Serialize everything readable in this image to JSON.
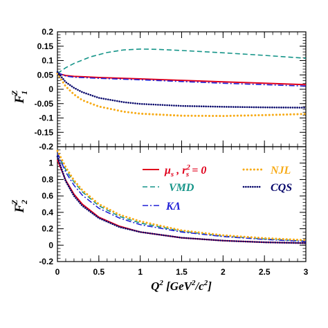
{
  "colors": {
    "mu_s": "#e0001c",
    "vmd": "#149488",
    "klambda": "#1f1fd6",
    "njl": "#f7ab18",
    "cqs": "#08086b"
  },
  "chart_data": {
    "type": "line",
    "xlabel": {
      "main": "Q",
      "rest": " [GeV",
      "rest2": "/c",
      "rest3": "]"
    },
    "x_ticks": [
      "0",
      "0.5",
      "1",
      "1.5",
      "2",
      "2.5",
      "3"
    ],
    "xlim": [
      0,
      3
    ],
    "panels": [
      {
        "ylabel": {
          "base": "F",
          "sup": "Z",
          "sub": "1"
        },
        "ylim": [
          -0.2,
          0.2
        ],
        "y_ticks": [
          "-0.2",
          "-0.15",
          "-0.1",
          "-0.05",
          "0",
          "0.05",
          "0.1",
          "0.15",
          "0.2"
        ],
        "series": [
          {
            "key": "mu_s",
            "x": [
              0,
              0.1,
              0.2,
              0.5,
              1,
              1.5,
              2,
              2.5,
              3
            ],
            "y": [
              0.055,
              0.048,
              0.045,
              0.041,
              0.036,
              0.031,
              0.026,
              0.021,
              0.016
            ]
          },
          {
            "key": "vmd",
            "x": [
              0,
              0.1,
              0.2,
              0.4,
              0.6,
              0.8,
              1,
              1.2,
              1.5,
              2,
              2.5,
              3
            ],
            "y": [
              0.055,
              0.075,
              0.09,
              0.113,
              0.128,
              0.137,
              0.14,
              0.139,
              0.135,
              0.127,
              0.118,
              0.108
            ]
          },
          {
            "key": "klambda",
            "x": [
              0,
              0.1,
              0.2,
              0.5,
              1,
              1.5,
              2,
              2.5,
              3
            ],
            "y": [
              0.058,
              0.046,
              0.042,
              0.038,
              0.033,
              0.027,
              0.021,
              0.016,
              0.011
            ]
          },
          {
            "key": "njl",
            "x": [
              0,
              0.1,
              0.2,
              0.3,
              0.5,
              0.8,
              1,
              1.5,
              2,
              2.5,
              3
            ],
            "y": [
              0.055,
              0.01,
              -0.018,
              -0.038,
              -0.06,
              -0.078,
              -0.085,
              -0.092,
              -0.093,
              -0.09,
              -0.086
            ]
          },
          {
            "key": "cqs",
            "x": [
              0,
              0.1,
              0.2,
              0.3,
              0.5,
              0.8,
              1,
              1.5,
              2,
              2.5,
              3
            ],
            "y": [
              0.06,
              0.025,
              0.005,
              -0.01,
              -0.03,
              -0.045,
              -0.051,
              -0.058,
              -0.061,
              -0.063,
              -0.064
            ]
          }
        ]
      },
      {
        "ylabel": {
          "base": "F",
          "sup": "Z",
          "sub": "2"
        },
        "ylim": [
          -0.2,
          1.2
        ],
        "y_ticks": [
          "-0.2",
          "0",
          "0.2",
          "0.4",
          "0.6",
          "0.8",
          "1"
        ],
        "series": [
          {
            "key": "mu_s",
            "x": [
              0,
              0.1,
              0.2,
              0.3,
              0.5,
              0.75,
              1,
              1.5,
              2,
              2.5,
              3
            ],
            "y": [
              1.04,
              0.79,
              0.62,
              0.5,
              0.34,
              0.23,
              0.16,
              0.09,
              0.055,
              0.035,
              0.025
            ]
          },
          {
            "key": "vmd",
            "x": [
              0,
              0.1,
              0.2,
              0.3,
              0.5,
              0.75,
              1,
              1.5,
              2,
              2.5,
              3
            ],
            "y": [
              1.12,
              0.92,
              0.77,
              0.65,
              0.48,
              0.35,
              0.27,
              0.17,
              0.11,
              0.075,
              0.05
            ]
          },
          {
            "key": "klambda",
            "x": [
              0,
              0.1,
              0.2,
              0.3,
              0.5,
              0.75,
              1,
              1.5,
              2,
              2.5,
              3
            ],
            "y": [
              1.12,
              0.89,
              0.73,
              0.61,
              0.45,
              0.33,
              0.25,
              0.16,
              0.105,
              0.07,
              0.045
            ]
          },
          {
            "key": "njl",
            "x": [
              0,
              0.1,
              0.2,
              0.3,
              0.5,
              0.75,
              1,
              1.5,
              2,
              2.5,
              3
            ],
            "y": [
              1.15,
              0.95,
              0.79,
              0.67,
              0.5,
              0.37,
              0.29,
              0.18,
              0.12,
              0.085,
              0.06
            ]
          },
          {
            "key": "cqs",
            "x": [
              0,
              0.1,
              0.2,
              0.3,
              0.5,
              0.75,
              1,
              1.5,
              2,
              2.5,
              3
            ],
            "y": [
              1.08,
              0.78,
              0.6,
              0.48,
              0.33,
              0.22,
              0.16,
              0.09,
              0.055,
              0.035,
              0.025
            ]
          }
        ]
      }
    ],
    "legend": [
      {
        "key": "mu_s",
        "label_a": "μ",
        "label_a_sub": "s",
        "label_b": " , r",
        "label_b_sup": "2",
        "label_b_sub": "s",
        "label_c": " = 0"
      },
      {
        "key": "vmd",
        "label": "VMD"
      },
      {
        "key": "klambda",
        "label": "KΛ"
      },
      {
        "key": "njl",
        "label": "NJL"
      },
      {
        "key": "cqs",
        "label": "CQS"
      }
    ]
  }
}
